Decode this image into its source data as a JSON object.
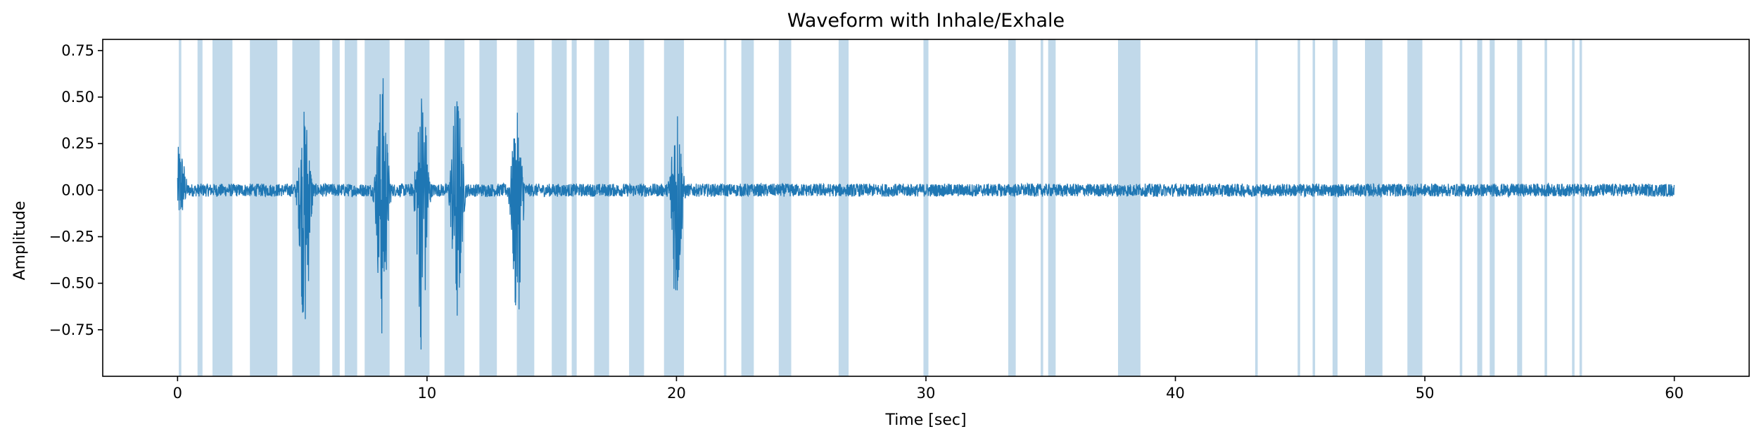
{
  "chart_data": {
    "type": "line",
    "title": "Waveform with Inhale/Exhale",
    "xlabel": "Time [sec]",
    "ylabel": "Amplitude",
    "xlim": [
      -3,
      63
    ],
    "ylim": [
      -1.0,
      0.81
    ],
    "x_ticks": [
      0,
      10,
      20,
      30,
      40,
      50,
      60
    ],
    "y_ticks": [
      0.75,
      0.5,
      0.25,
      0.0,
      -0.25,
      -0.5,
      -0.75
    ],
    "x_tick_labels": [
      "0",
      "10",
      "20",
      "30",
      "40",
      "50",
      "60"
    ],
    "y_tick_labels": [
      "0.75",
      "0.50",
      "0.25",
      "0.00",
      "−0.25",
      "−0.50",
      "−0.75"
    ],
    "grid": false,
    "series": [
      {
        "color": "#1f77b4",
        "x_range": [
          0,
          60
        ],
        "baseline_noise": 0.035,
        "bursts": [
          {
            "t": 0.1,
            "peak": 0.26,
            "trough": -0.17
          },
          {
            "t": 5.1,
            "peak": 0.45,
            "trough": -0.82
          },
          {
            "t": 8.2,
            "peak": 0.65,
            "trough": -0.85
          },
          {
            "t": 9.8,
            "peak": 0.6,
            "trough": -0.9
          },
          {
            "t": 11.2,
            "peak": 0.56,
            "trough": -0.8
          },
          {
            "t": 13.6,
            "peak": 0.42,
            "trough": -0.76
          },
          {
            "t": 20.0,
            "peak": 0.51,
            "trough": -0.67
          }
        ]
      }
    ],
    "inhale_exhale_regions": {
      "color": "#1f77b4",
      "opacity": 0.28,
      "spans": [
        [
          0.05,
          0.15
        ],
        [
          0.8,
          1.0
        ],
        [
          1.4,
          2.2
        ],
        [
          2.9,
          4.0
        ],
        [
          4.6,
          5.7
        ],
        [
          6.2,
          6.5
        ],
        [
          6.7,
          7.2
        ],
        [
          7.5,
          8.5
        ],
        [
          9.1,
          10.1
        ],
        [
          10.7,
          11.5
        ],
        [
          12.1,
          12.8
        ],
        [
          13.6,
          14.3
        ],
        [
          15.0,
          15.6
        ],
        [
          15.8,
          16.0
        ],
        [
          16.7,
          17.3
        ],
        [
          18.1,
          18.7
        ],
        [
          19.5,
          20.3
        ],
        [
          21.9,
          22.0
        ],
        [
          22.6,
          23.1
        ],
        [
          24.1,
          24.6
        ],
        [
          26.5,
          26.9
        ],
        [
          29.9,
          30.1
        ],
        [
          33.3,
          33.6
        ],
        [
          34.6,
          34.7
        ],
        [
          34.9,
          35.2
        ],
        [
          37.7,
          38.6
        ],
        [
          43.2,
          43.3
        ],
        [
          44.9,
          45.0
        ],
        [
          45.5,
          45.6
        ],
        [
          46.3,
          46.5
        ],
        [
          47.6,
          48.3
        ],
        [
          49.3,
          49.9
        ],
        [
          51.4,
          51.5
        ],
        [
          52.1,
          52.3
        ],
        [
          52.6,
          52.8
        ],
        [
          53.7,
          53.9
        ],
        [
          54.8,
          54.9
        ],
        [
          55.9,
          56.0
        ],
        [
          56.2,
          56.3
        ]
      ]
    }
  }
}
